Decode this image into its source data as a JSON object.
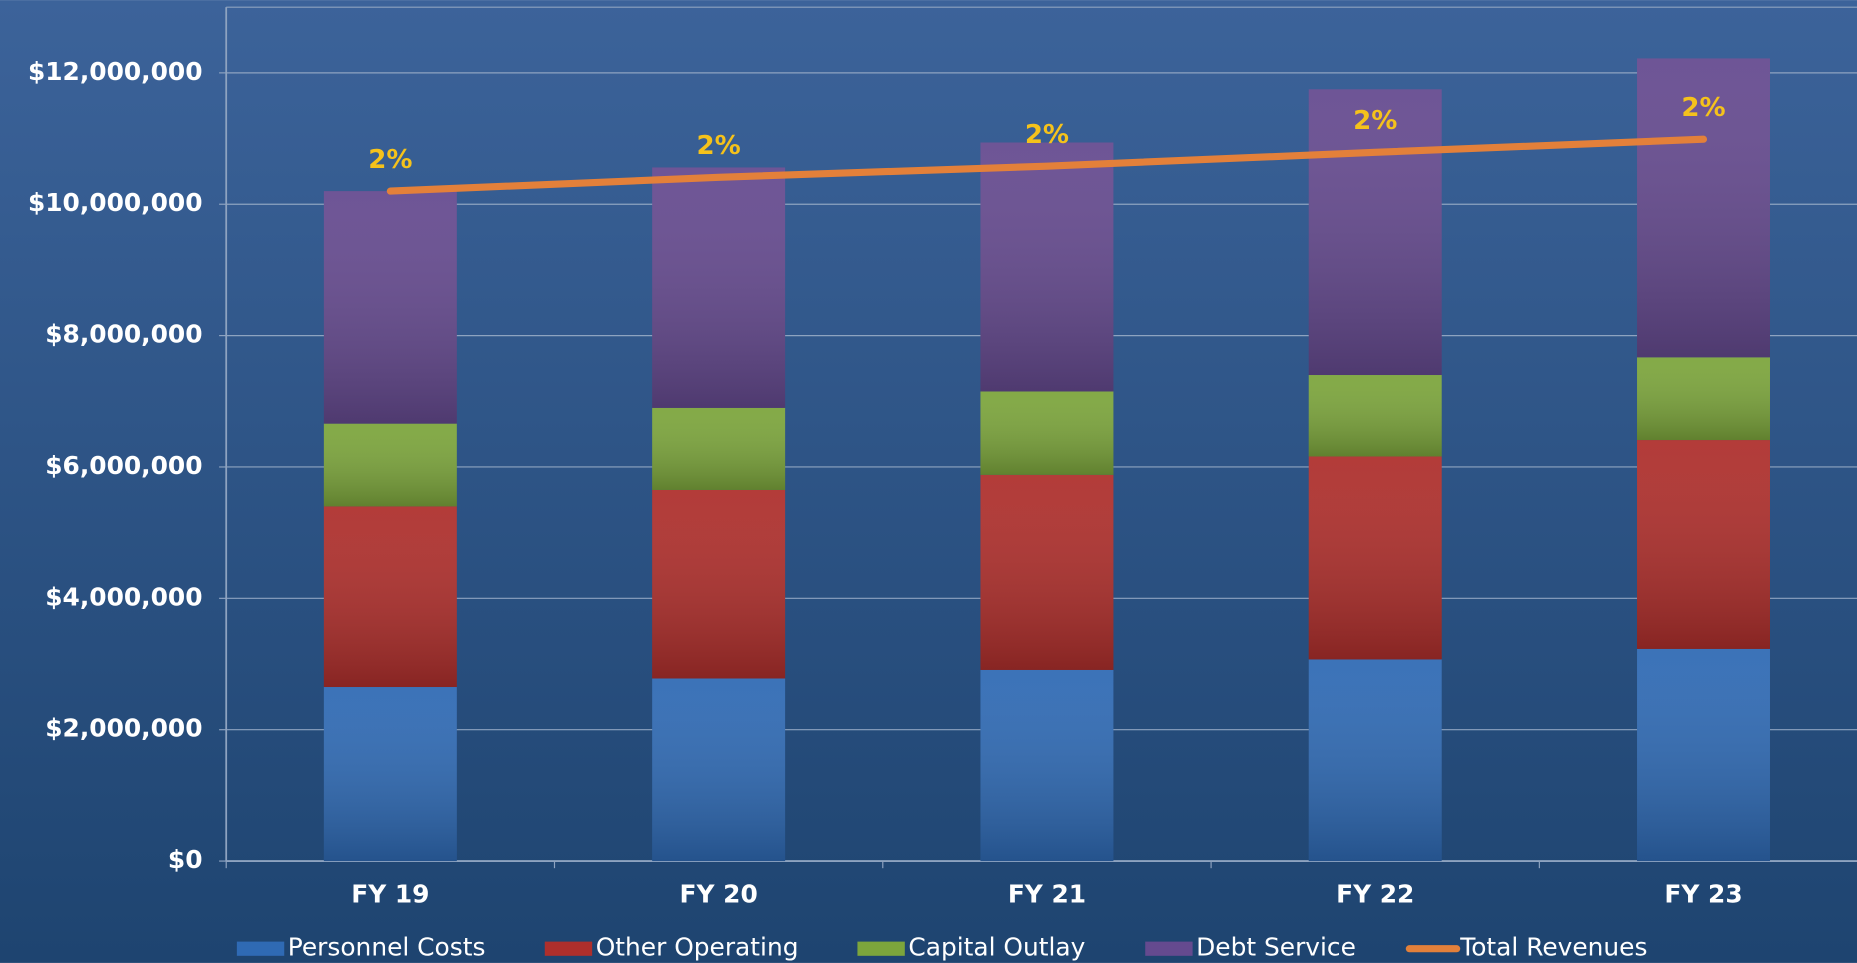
{
  "chart_data": {
    "type": "stacked-bar-line",
    "categories": [
      "FY 19",
      "FY 20",
      "FY 21",
      "FY 22",
      "FY 23"
    ],
    "series": [
      {
        "name": "Personnel Costs",
        "color": "#2f6ab4",
        "values": [
          2650000,
          2780000,
          2910000,
          3070000,
          3230000
        ]
      },
      {
        "name": "Other Operating",
        "color": "#ae2f2c",
        "values": [
          2750000,
          2870000,
          2970000,
          3090000,
          3180000
        ]
      },
      {
        "name": "Capital Outlay",
        "color": "#7ca53c",
        "values": [
          1260000,
          1250000,
          1270000,
          1240000,
          1260000
        ]
      },
      {
        "name": "Debt Service",
        "color": "#654a8f",
        "values": [
          3540000,
          3660000,
          3790000,
          4350000,
          4550000
        ]
      },
      {
        "name": "Total Revenues",
        "color": "#e3803a",
        "type": "line",
        "values": [
          10200000,
          10410000,
          10580000,
          10790000,
          10990000
        ]
      }
    ],
    "annotations": [
      "2%",
      "2%",
      "2%",
      "2%",
      "2%"
    ],
    "ylim": [
      0,
      13000000
    ],
    "yticks": [
      {
        "value": 0,
        "label": "$0"
      },
      {
        "value": 2000000,
        "label": "$2,000,000"
      },
      {
        "value": 4000000,
        "label": "$4,000,000"
      },
      {
        "value": 6000000,
        "label": "$6,000,000"
      },
      {
        "value": 8000000,
        "label": "$8,000,000"
      },
      {
        "value": 10000000,
        "label": "$10,000,000"
      },
      {
        "value": 12000000,
        "label": "$12,000,000"
      }
    ],
    "grid": true,
    "legend": "bottom"
  }
}
